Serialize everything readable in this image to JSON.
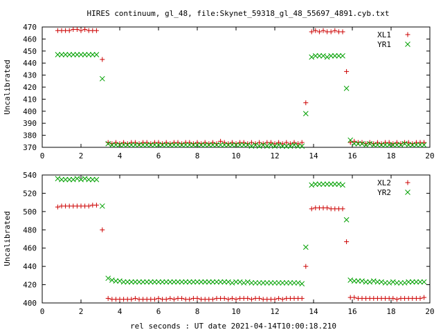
{
  "title": "HIRES continuum, gl_48, file:Skynet_59318_gl_48_55697_4891.cyb.txt",
  "xlabel": "rel seconds : UT date 2021-04-14T10:00:18.210",
  "colors": {
    "xl": "#cc0000",
    "yr": "#00a000"
  },
  "chart_data": [
    {
      "type": "scatter",
      "ylabel": "Uncalibrated",
      "xlim": [
        0,
        20
      ],
      "ylim": [
        370,
        470
      ],
      "xticks": [
        "0",
        "2",
        "4",
        "6",
        "8",
        "10",
        "12",
        "14",
        "16",
        "18",
        "20"
      ],
      "yticks": [
        "370",
        "380",
        "390",
        "400",
        "410",
        "420",
        "430",
        "440",
        "450",
        "460",
        "470"
      ],
      "legend_position": "top-right",
      "series": [
        {
          "name": "XL1",
          "marker": "plus",
          "x": [
            0.8,
            1.0,
            1.2,
            1.4,
            1.6,
            1.8,
            2.0,
            2.2,
            2.4,
            2.6,
            2.8,
            3.1,
            3.4,
            3.6,
            3.8,
            4.0,
            4.2,
            4.4,
            4.6,
            4.8,
            5.0,
            5.2,
            5.4,
            5.6,
            5.8,
            6.0,
            6.2,
            6.4,
            6.6,
            6.8,
            7.0,
            7.2,
            7.4,
            7.6,
            7.8,
            8.0,
            8.2,
            8.4,
            8.6,
            8.8,
            9.0,
            9.2,
            9.4,
            9.6,
            9.8,
            10.0,
            10.2,
            10.4,
            10.6,
            10.8,
            11.0,
            11.2,
            11.4,
            11.6,
            11.8,
            12.0,
            12.2,
            12.4,
            12.6,
            12.8,
            13.0,
            13.2,
            13.4,
            13.6,
            13.9,
            14.1,
            14.3,
            14.5,
            14.7,
            14.9,
            15.1,
            15.3,
            15.5,
            15.7,
            15.9,
            16.1,
            16.3,
            16.5,
            16.7,
            16.9,
            17.1,
            17.3,
            17.5,
            17.7,
            17.9,
            18.1,
            18.3,
            18.5,
            18.7,
            18.9,
            19.1,
            19.3,
            19.5,
            19.7
          ],
          "y": [
            467,
            467,
            467,
            467,
            468,
            468,
            467,
            468,
            467,
            467,
            467,
            443,
            374,
            373,
            374,
            373,
            374,
            373,
            374,
            374,
            373,
            374,
            374,
            373,
            374,
            374,
            373,
            374,
            373,
            374,
            374,
            373,
            374,
            374,
            373,
            374,
            373,
            374,
            373,
            374,
            373,
            375,
            374,
            373,
            374,
            373,
            374,
            374,
            373,
            374,
            373,
            374,
            373,
            374,
            374,
            373,
            374,
            373,
            374,
            373,
            374,
            373,
            374,
            407,
            466,
            467,
            466,
            467,
            466,
            466,
            467,
            466,
            466,
            433,
            374,
            375,
            374,
            374,
            373,
            374,
            373,
            374,
            373,
            374,
            374,
            373,
            374,
            373,
            374,
            374,
            373,
            374,
            374,
            374
          ]
        },
        {
          "name": "YR1",
          "marker": "cross",
          "x": [
            0.8,
            1.0,
            1.2,
            1.4,
            1.6,
            1.8,
            2.0,
            2.2,
            2.4,
            2.6,
            2.8,
            3.1,
            3.4,
            3.6,
            3.8,
            4.0,
            4.2,
            4.4,
            4.6,
            4.8,
            5.0,
            5.2,
            5.4,
            5.6,
            5.8,
            6.0,
            6.2,
            6.4,
            6.6,
            6.8,
            7.0,
            7.2,
            7.4,
            7.6,
            7.8,
            8.0,
            8.2,
            8.4,
            8.6,
            8.8,
            9.0,
            9.2,
            9.4,
            9.6,
            9.8,
            10.0,
            10.2,
            10.4,
            10.6,
            10.8,
            11.0,
            11.2,
            11.4,
            11.6,
            11.8,
            12.0,
            12.2,
            12.4,
            12.6,
            12.8,
            13.0,
            13.2,
            13.4,
            13.6,
            13.9,
            14.1,
            14.3,
            14.5,
            14.7,
            14.9,
            15.1,
            15.3,
            15.5,
            15.7,
            15.9,
            16.1,
            16.3,
            16.5,
            16.7,
            16.9,
            17.1,
            17.3,
            17.5,
            17.7,
            17.9,
            18.1,
            18.3,
            18.5,
            18.7,
            18.9,
            19.1,
            19.3,
            19.5,
            19.7
          ],
          "y": [
            447,
            447,
            447,
            447,
            447,
            447,
            447,
            447,
            447,
            447,
            447,
            427,
            373,
            372,
            372,
            372,
            372,
            372,
            372,
            372,
            372,
            372,
            372,
            372,
            372,
            372,
            372,
            372,
            372,
            372,
            372,
            372,
            372,
            372,
            372,
            372,
            372,
            372,
            372,
            372,
            372,
            372,
            372,
            372,
            372,
            372,
            372,
            372,
            372,
            371,
            372,
            371,
            372,
            371,
            372,
            371,
            372,
            371,
            371,
            371,
            372,
            371,
            371,
            398,
            445,
            446,
            446,
            446,
            445,
            446,
            446,
            446,
            446,
            419,
            376,
            373,
            373,
            373,
            372,
            373,
            372,
            372,
            372,
            372,
            372,
            372,
            372,
            372,
            373,
            372,
            372,
            372,
            372,
            372
          ]
        }
      ]
    },
    {
      "type": "scatter",
      "ylabel": "Uncalibrated",
      "xlim": [
        0,
        20
      ],
      "ylim": [
        400,
        540
      ],
      "xticks": [
        "0",
        "2",
        "4",
        "6",
        "8",
        "10",
        "12",
        "14",
        "16",
        "18",
        "20"
      ],
      "yticks": [
        "400",
        "420",
        "440",
        "460",
        "480",
        "500",
        "520",
        "540"
      ],
      "legend_position": "top-right",
      "series": [
        {
          "name": "XL2",
          "marker": "plus",
          "x": [
            0.8,
            1.0,
            1.2,
            1.4,
            1.6,
            1.8,
            2.0,
            2.2,
            2.4,
            2.6,
            2.8,
            3.1,
            3.4,
            3.6,
            3.8,
            4.0,
            4.2,
            4.4,
            4.6,
            4.8,
            5.0,
            5.2,
            5.4,
            5.6,
            5.8,
            6.0,
            6.2,
            6.4,
            6.6,
            6.8,
            7.0,
            7.2,
            7.4,
            7.6,
            7.8,
            8.0,
            8.2,
            8.4,
            8.6,
            8.8,
            9.0,
            9.2,
            9.4,
            9.6,
            9.8,
            10.0,
            10.2,
            10.4,
            10.6,
            10.8,
            11.0,
            11.2,
            11.4,
            11.6,
            11.8,
            12.0,
            12.2,
            12.4,
            12.6,
            12.8,
            13.0,
            13.2,
            13.4,
            13.6,
            13.9,
            14.1,
            14.3,
            14.5,
            14.7,
            14.9,
            15.1,
            15.3,
            15.5,
            15.7,
            15.9,
            16.1,
            16.3,
            16.5,
            16.7,
            16.9,
            17.1,
            17.3,
            17.5,
            17.7,
            17.9,
            18.1,
            18.3,
            18.5,
            18.7,
            18.9,
            19.1,
            19.3,
            19.5,
            19.7
          ],
          "y": [
            505,
            506,
            506,
            506,
            506,
            506,
            506,
            506,
            506,
            507,
            507,
            480,
            405,
            404,
            404,
            404,
            404,
            404,
            404,
            405,
            404,
            404,
            404,
            404,
            404,
            405,
            404,
            404,
            405,
            404,
            405,
            405,
            404,
            404,
            405,
            405,
            404,
            404,
            404,
            404,
            405,
            405,
            405,
            404,
            405,
            404,
            405,
            405,
            405,
            404,
            405,
            405,
            404,
            404,
            404,
            404,
            405,
            404,
            405,
            405,
            405,
            405,
            405,
            440,
            503,
            504,
            504,
            504,
            504,
            503,
            503,
            503,
            503,
            467,
            406,
            406,
            405,
            405,
            405,
            405,
            405,
            405,
            405,
            405,
            405,
            405,
            404,
            405,
            405,
            405,
            405,
            405,
            405,
            406
          ]
        },
        {
          "name": "YR2",
          "marker": "cross",
          "x": [
            0.8,
            1.0,
            1.2,
            1.4,
            1.6,
            1.8,
            2.0,
            2.2,
            2.4,
            2.6,
            2.8,
            3.1,
            3.4,
            3.6,
            3.8,
            4.0,
            4.2,
            4.4,
            4.6,
            4.8,
            5.0,
            5.2,
            5.4,
            5.6,
            5.8,
            6.0,
            6.2,
            6.4,
            6.6,
            6.8,
            7.0,
            7.2,
            7.4,
            7.6,
            7.8,
            8.0,
            8.2,
            8.4,
            8.6,
            8.8,
            9.0,
            9.2,
            9.4,
            9.6,
            9.8,
            10.0,
            10.2,
            10.4,
            10.6,
            10.8,
            11.0,
            11.2,
            11.4,
            11.6,
            11.8,
            12.0,
            12.2,
            12.4,
            12.6,
            12.8,
            13.0,
            13.2,
            13.4,
            13.6,
            13.9,
            14.1,
            14.3,
            14.5,
            14.7,
            14.9,
            15.1,
            15.3,
            15.5,
            15.7,
            15.9,
            16.1,
            16.3,
            16.5,
            16.7,
            16.9,
            17.1,
            17.3,
            17.5,
            17.7,
            17.9,
            18.1,
            18.3,
            18.5,
            18.7,
            18.9,
            19.1,
            19.3,
            19.5,
            19.7
          ],
          "y": [
            536,
            535,
            535,
            535,
            535,
            536,
            535,
            536,
            535,
            535,
            535,
            506,
            427,
            425,
            424,
            424,
            423,
            423,
            423,
            423,
            423,
            423,
            423,
            423,
            423,
            423,
            423,
            423,
            423,
            423,
            423,
            423,
            423,
            423,
            423,
            423,
            423,
            423,
            423,
            423,
            423,
            423,
            423,
            423,
            422,
            423,
            423,
            422,
            423,
            422,
            422,
            422,
            422,
            422,
            422,
            422,
            422,
            422,
            422,
            422,
            422,
            422,
            421,
            461,
            529,
            530,
            530,
            530,
            530,
            530,
            530,
            530,
            529,
            491,
            425,
            424,
            424,
            424,
            423,
            423,
            424,
            423,
            423,
            422,
            422,
            423,
            422,
            422,
            422,
            423,
            423,
            423,
            423,
            423
          ]
        }
      ]
    }
  ]
}
